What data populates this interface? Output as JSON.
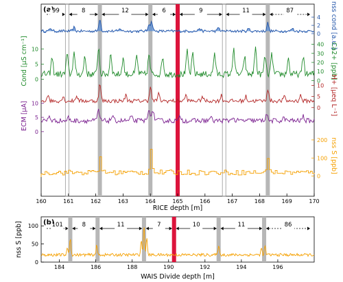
{
  "chart_data": [
    {
      "panel_label": "(a)",
      "type": "line",
      "xlabel": "RICE depth [m]",
      "xlim": [
        160,
        170
      ],
      "x_ticks": [
        "160",
        "161",
        "162",
        "163",
        "164",
        "165",
        "166",
        "167",
        "168",
        "169",
        "170"
      ],
      "grid": false,
      "legend": "none",
      "layer_counts": [
        "99",
        "8",
        "12",
        "6",
        "9",
        "11",
        "87"
      ],
      "gray_markers_depth": [
        162.15,
        164.0,
        168.3
      ],
      "open_markers_depth": [
        160.95,
        166.7
      ],
      "red_marker_depth": 165.0,
      "series": [
        {
          "key": "nss_cond",
          "name": "nss cond",
          "ylabel": "nss cond [a.u.]",
          "side": "right",
          "color": "#2255aa",
          "fill": "#5b8fd6",
          "y_ticks": [
            "0",
            "2",
            "4"
          ],
          "ylim": [
            -0.5,
            4.5
          ],
          "baseline": 0.6,
          "noise": 0.35,
          "peaks": [
            [
              160.35,
              0.8
            ],
            [
              161.2,
              0.9
            ],
            [
              162.15,
              3.2
            ],
            [
              162.9,
              0.7
            ],
            [
              163.95,
              1.9
            ],
            [
              164.05,
              2.3
            ],
            [
              165.8,
              0.8
            ],
            [
              166.5,
              0.9
            ],
            [
              167.6,
              0.6
            ],
            [
              168.3,
              2.0
            ],
            [
              169.2,
              0.7
            ]
          ]
        },
        {
          "key": "ca",
          "name": "Ca2+",
          "ylabel": "Ca2+ [ppb]",
          "side": "right",
          "color": "#1f8a2a",
          "y_ticks": [
            "0",
            "10",
            "20",
            "30",
            "40"
          ],
          "ylim": [
            -2,
            45
          ],
          "baseline": 7,
          "noise": 3.5,
          "peaks": [
            [
              160.4,
              18
            ],
            [
              160.95,
              22
            ],
            [
              161.2,
              25
            ],
            [
              161.6,
              20
            ],
            [
              162.1,
              30
            ],
            [
              162.55,
              24
            ],
            [
              163.0,
              18
            ],
            [
              163.5,
              20
            ],
            [
              163.95,
              22
            ],
            [
              164.45,
              20
            ],
            [
              165.35,
              25
            ],
            [
              165.55,
              22
            ],
            [
              166.35,
              24
            ],
            [
              167.05,
              30
            ],
            [
              167.45,
              20
            ],
            [
              167.85,
              30
            ],
            [
              168.2,
              20
            ],
            [
              168.45,
              22
            ],
            [
              169.05,
              18
            ],
            [
              169.6,
              20
            ]
          ]
        },
        {
          "key": "cond",
          "name": "Cond",
          "ylabel": "Cond [μS cm⁻¹]",
          "side": "left",
          "color": "#1f8a2a",
          "y_ticks": [
            "0",
            "5",
            "10"
          ],
          "ylim": [
            -1,
            13
          ]
        },
        {
          "key": "h",
          "name": "H+",
          "ylabel": "H+ [μeq L⁻¹]",
          "side": "right",
          "color": "#b22222",
          "y_ticks": [
            "0",
            "5",
            "10"
          ],
          "ylim": [
            -1,
            12
          ],
          "baseline": 3,
          "noise": 0.9,
          "peaks": [
            [
              160.25,
              3
            ],
            [
              160.8,
              2
            ],
            [
              161.3,
              2.5
            ],
            [
              162.15,
              7.5
            ],
            [
              163.1,
              2.5
            ],
            [
              164.0,
              6.5
            ],
            [
              164.3,
              3
            ],
            [
              165.3,
              2.5
            ],
            [
              165.9,
              2
            ],
            [
              166.6,
              2.5
            ],
            [
              167.5,
              2
            ],
            [
              168.3,
              5.5
            ],
            [
              168.9,
              2
            ],
            [
              169.5,
              2.5
            ]
          ]
        },
        {
          "key": "ecm",
          "name": "ECM",
          "ylabel": "ECM [μA]",
          "side": "left",
          "color": "#7a1f8f",
          "y_ticks": [
            "0",
            "5",
            "10"
          ],
          "ylim": [
            -1,
            12
          ],
          "baseline": 3.5,
          "noise": 0.8,
          "peaks": [
            [
              160.3,
              1.5
            ],
            [
              161.0,
              1.0
            ],
            [
              162.1,
              3.5
            ],
            [
              162.6,
              1.5
            ],
            [
              163.3,
              1.2
            ],
            [
              163.95,
              4.5
            ],
            [
              164.1,
              3.5
            ],
            [
              165.1,
              1.5
            ],
            [
              166.2,
              1.2
            ],
            [
              167.0,
              1.2
            ],
            [
              168.25,
              2.5
            ],
            [
              168.9,
              1.0
            ],
            [
              169.6,
              1.5
            ]
          ]
        },
        {
          "key": "nss_s",
          "name": "nss S",
          "ylabel": "nss S [ppb]",
          "side": "right",
          "color": "#f5a000",
          "style": "step",
          "y_ticks": [
            "0",
            "100",
            "200"
          ],
          "ylim": [
            -5,
            230
          ],
          "baseline": 20,
          "noise": 14,
          "peaks": [
            [
              162.15,
              95
            ],
            [
              164.0,
              140
            ],
            [
              168.3,
              95
            ]
          ]
        }
      ]
    },
    {
      "panel_label": "(b)",
      "type": "line",
      "xlabel": "WAIS Divide depth [m]",
      "ylabel": "nss S [ppb]",
      "xlim": [
        183,
        198
      ],
      "ylim": [
        0,
        125
      ],
      "x_ticks": [
        "184",
        "186",
        "188",
        "190",
        "192",
        "194",
        "196"
      ],
      "y_ticks": [
        "0",
        "50",
        "100"
      ],
      "grid": false,
      "legend": "none",
      "layer_counts": [
        "101",
        "8",
        "11",
        "7",
        "10",
        "11",
        "86"
      ],
      "gray_markers_depth": [
        184.6,
        186.1,
        188.65,
        192.75,
        195.25
      ],
      "red_marker_depth": 190.3,
      "series": [
        {
          "key": "wais_nss_s",
          "name": "nss S",
          "color": "#f5a000",
          "baseline": 20,
          "noise": 4,
          "peaks": [
            [
              184.45,
              20
            ],
            [
              184.6,
              45
            ],
            [
              186.05,
              25
            ],
            [
              188.5,
              40
            ],
            [
              188.65,
              80
            ],
            [
              188.8,
              45
            ],
            [
              192.75,
              28
            ],
            [
              195.1,
              18
            ],
            [
              195.3,
              25
            ]
          ]
        }
      ]
    }
  ]
}
